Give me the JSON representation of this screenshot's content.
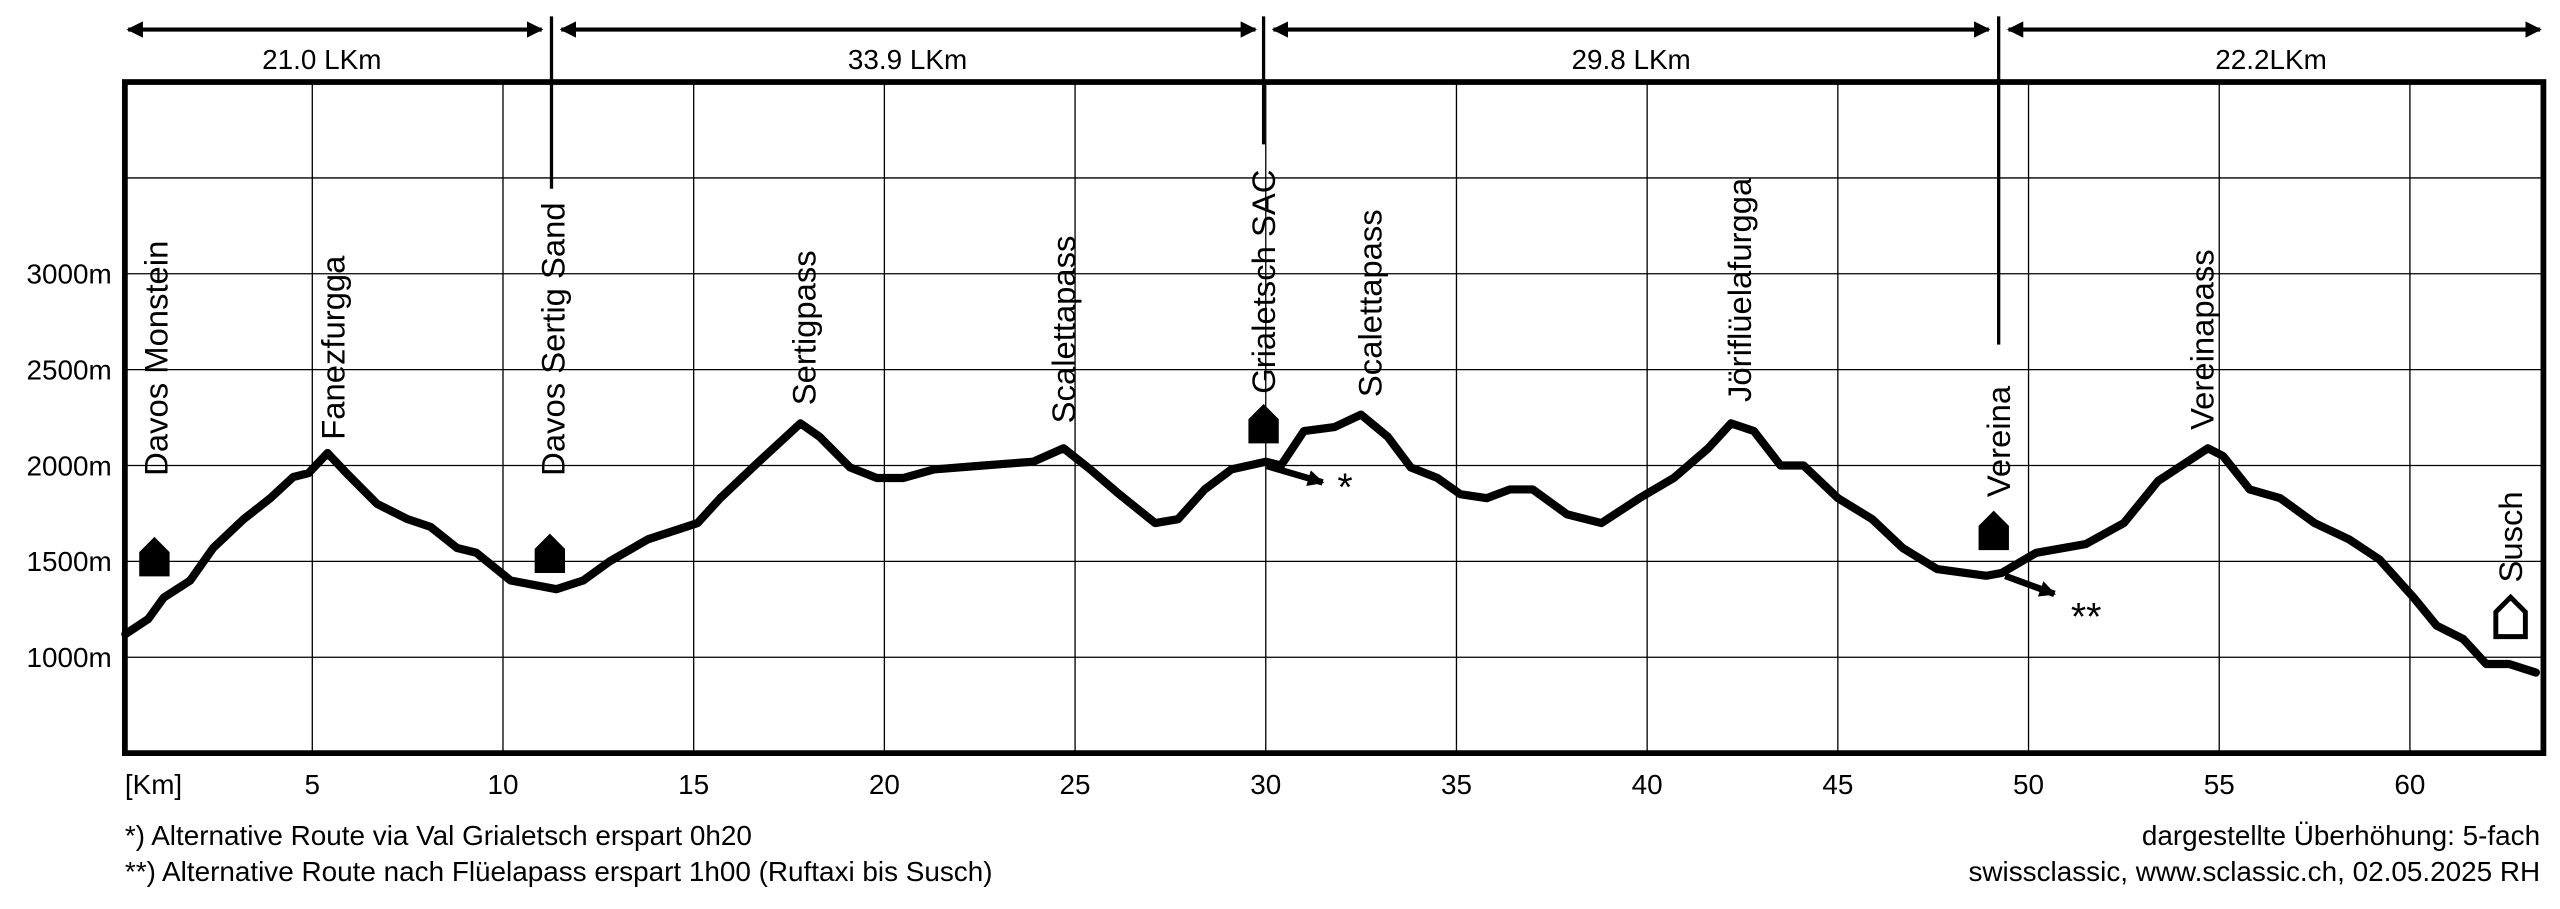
{
  "chart_data": {
    "type": "line",
    "x": [
      0.1,
      0.7,
      1.1,
      1.8,
      2.4,
      3.2,
      3.9,
      4.5,
      4.9,
      5.4,
      5.9,
      6.7,
      7.5,
      8.1,
      8.8,
      9.3,
      10.2,
      11.4,
      12.1,
      12.8,
      13.8,
      15.1,
      15.7,
      16.6,
      17.8,
      18.3,
      19.1,
      19.8,
      20.5,
      21.3,
      22.6,
      23.9,
      24.7,
      25.4,
      26.1,
      27.1,
      27.7,
      28.4,
      29.1,
      30.0,
      30.4,
      31.0,
      31.8,
      32.5,
      33.2,
      33.8,
      34.5,
      35.1,
      35.8,
      36.4,
      37.0,
      37.9,
      38.8,
      39.8,
      40.7,
      41.6,
      42.2,
      42.8,
      43.5,
      44.1,
      45.0,
      45.9,
      46.7,
      47.6,
      48.9,
      49.3,
      50.2,
      51.5,
      52.5,
      53.4,
      54.7,
      55.1,
      55.8,
      56.6,
      57.5,
      58.4,
      59.2,
      60.1,
      60.7,
      61.4,
      62.0,
      62.6,
      63.3
    ],
    "values": [
      1120,
      1200,
      1310,
      1400,
      1570,
      1720,
      1830,
      1940,
      1960,
      2065,
      1960,
      1800,
      1720,
      1680,
      1570,
      1545,
      1400,
      1355,
      1400,
      1500,
      1615,
      1700,
      1830,
      2000,
      2220,
      2150,
      1990,
      1935,
      1935,
      1980,
      2000,
      2020,
      2090,
      1980,
      1860,
      1700,
      1720,
      1875,
      1980,
      2020,
      2000,
      2180,
      2200,
      2265,
      2150,
      1990,
      1935,
      1850,
      1830,
      1875,
      1875,
      1745,
      1700,
      1830,
      1935,
      2090,
      2220,
      2180,
      2000,
      2000,
      1830,
      1720,
      1570,
      1460,
      1425,
      1440,
      1545,
      1590,
      1700,
      1920,
      2090,
      2050,
      1875,
      1830,
      1700,
      1615,
      1510,
      1310,
      1165,
      1095,
      965,
      965,
      920
    ],
    "color": "#000000",
    "xlim": [
      0,
      63.5
    ],
    "xticks": [
      {
        "value": 0,
        "label": "[Km]"
      },
      5,
      10,
      15,
      20,
      25,
      30,
      35,
      40,
      45,
      50,
      55,
      60
    ],
    "ylim": [
      500,
      4000
    ],
    "yticks": [
      {
        "value": 1000,
        "label": "1000m"
      },
      {
        "value": 1500,
        "label": "1500m"
      },
      {
        "value": 2000,
        "label": "2000m"
      },
      {
        "value": 2500,
        "label": "2500m"
      },
      {
        "value": 3000,
        "label": "3000m"
      },
      {
        "value": 3500,
        "label": null
      }
    ],
    "grid": true,
    "segments": [
      "21.0 LKm",
      "33.9 LKm",
      "29.8 LKm",
      "22.2LKm"
    ],
    "places": [
      "Davos Monstein",
      "Fanezfurgga",
      "Davos Sertig Sand",
      "Sertigpass",
      "Scalettapass",
      "Grialetsch SAC",
      "Scalettapass",
      "Jöriflüelafurgga",
      "Vereina",
      "Vereinapass",
      "Susch"
    ],
    "branch_marks": [
      "*",
      "**"
    ],
    "footnotes": [
      "*) Alternative Route via Val Grialetsch erspart 0h20",
      "**) Alternative Route nach Flüelapass erspart 1h00 (Ruftaxi bis Susch)"
    ],
    "credits": [
      "dargestellte  Überhöhung: 5-fach",
      "swissclassic, www.sclassic.ch,  02.05.2025 RH"
    ]
  }
}
